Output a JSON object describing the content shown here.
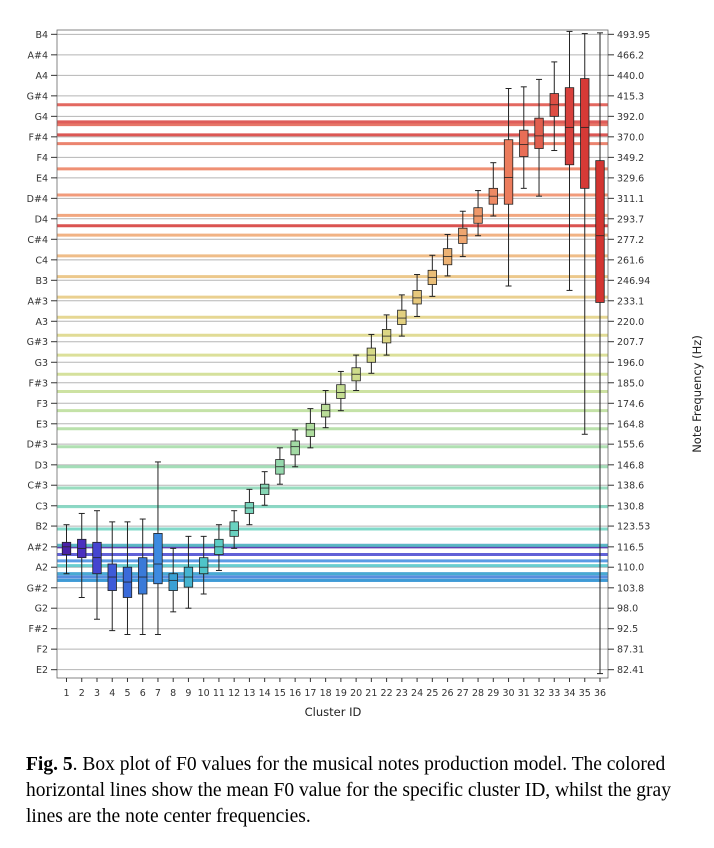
{
  "caption": {
    "label": "Fig. 5",
    "text": ". Box plot of F0 values for the musical notes production model. The colored horizontal lines show the mean F0 value for the specific cluster ID, whilst the gray lines are the note center frequencies."
  },
  "chart_data": {
    "type": "box",
    "xlabel": "Cluster ID",
    "ylabel_right": "Note Frequency (Hz)",
    "y_scale": "log",
    "ylim_hz": [
      80.5,
      500
    ],
    "note_ticks": [
      {
        "note": "E2",
        "freq": "82.41",
        "hz": 82.41
      },
      {
        "note": "F2",
        "freq": "87.31",
        "hz": 87.31
      },
      {
        "note": "F#2",
        "freq": "92.5",
        "hz": 92.5
      },
      {
        "note": "G2",
        "freq": "98.0",
        "hz": 98.0
      },
      {
        "note": "G#2",
        "freq": "103.8",
        "hz": 103.8
      },
      {
        "note": "A2",
        "freq": "110.0",
        "hz": 110.0
      },
      {
        "note": "A#2",
        "freq": "116.5",
        "hz": 116.5
      },
      {
        "note": "B2",
        "freq": "123.53",
        "hz": 123.53
      },
      {
        "note": "C3",
        "freq": "130.8",
        "hz": 130.8
      },
      {
        "note": "C#3",
        "freq": "138.6",
        "hz": 138.6
      },
      {
        "note": "D3",
        "freq": "146.8",
        "hz": 146.8
      },
      {
        "note": "D#3",
        "freq": "155.6",
        "hz": 155.6
      },
      {
        "note": "E3",
        "freq": "164.8",
        "hz": 164.8
      },
      {
        "note": "F3",
        "freq": "174.6",
        "hz": 174.6
      },
      {
        "note": "F#3",
        "freq": "185.0",
        "hz": 185.0
      },
      {
        "note": "G3",
        "freq": "196.0",
        "hz": 196.0
      },
      {
        "note": "G#3",
        "freq": "207.7",
        "hz": 207.7
      },
      {
        "note": "A3",
        "freq": "220.0",
        "hz": 220.0
      },
      {
        "note": "A#3",
        "freq": "233.1",
        "hz": 233.1
      },
      {
        "note": "B3",
        "freq": "246.94",
        "hz": 246.94
      },
      {
        "note": "C4",
        "freq": "261.6",
        "hz": 261.6
      },
      {
        "note": "C#4",
        "freq": "277.2",
        "hz": 277.2
      },
      {
        "note": "D4",
        "freq": "293.7",
        "hz": 293.7
      },
      {
        "note": "D#4",
        "freq": "311.1",
        "hz": 311.1
      },
      {
        "note": "E4",
        "freq": "329.6",
        "hz": 329.6
      },
      {
        "note": "F4",
        "freq": "349.2",
        "hz": 349.2
      },
      {
        "note": "F#4",
        "freq": "370.0",
        "hz": 370.0
      },
      {
        "note": "G4",
        "freq": "392.0",
        "hz": 392.0
      },
      {
        "note": "G#4",
        "freq": "415.3",
        "hz": 415.3
      },
      {
        "note": "A4",
        "freq": "440.0",
        "hz": 440.0
      },
      {
        "note": "A#4",
        "freq": "466.2",
        "hz": 466.2
      },
      {
        "note": "B4",
        "freq": "493.95",
        "hz": 493.95
      }
    ],
    "clusters": [
      {
        "id": "1",
        "whislo": 108,
        "q1": 114,
        "med": 116.5,
        "q3": 118,
        "whishi": 124,
        "mean": 116.5,
        "color": "#4a22a8"
      },
      {
        "id": "2",
        "whislo": 101,
        "q1": 113,
        "med": 116,
        "q3": 119,
        "whishi": 128,
        "mean": 117,
        "color": "#4a2fbf"
      },
      {
        "id": "3",
        "whislo": 95,
        "q1": 108,
        "med": 113,
        "q3": 118,
        "whishi": 129,
        "mean": 114,
        "color": "#4545d0"
      },
      {
        "id": "4",
        "whislo": 92,
        "q1": 103,
        "med": 107,
        "q3": 111,
        "whishi": 125,
        "mean": 108,
        "color": "#3e5ad8"
      },
      {
        "id": "5",
        "whislo": 91,
        "q1": 101,
        "med": 105.5,
        "q3": 110,
        "whishi": 125,
        "mean": 106,
        "color": "#3a6ad9"
      },
      {
        "id": "6",
        "whislo": 91,
        "q1": 102,
        "med": 107,
        "q3": 113,
        "whishi": 126,
        "mean": 107,
        "color": "#3a7ad8"
      },
      {
        "id": "7",
        "whislo": 91,
        "q1": 105,
        "med": 111,
        "q3": 121,
        "whishi": 148,
        "mean": 112,
        "color": "#3d8ae0"
      },
      {
        "id": "8",
        "whislo": 97,
        "q1": 103,
        "med": 106,
        "q3": 108,
        "whishi": 116,
        "mean": 106,
        "color": "#3aa0d4"
      },
      {
        "id": "9",
        "whislo": 98,
        "q1": 104,
        "med": 107,
        "q3": 110,
        "whishi": 120,
        "mean": 108,
        "color": "#45b4d0"
      },
      {
        "id": "10",
        "whislo": 102,
        "q1": 108,
        "med": 110,
        "q3": 113,
        "whishi": 120,
        "mean": 110.5,
        "color": "#4fc4c8"
      },
      {
        "id": "11",
        "whislo": 109,
        "q1": 114,
        "med": 116.5,
        "q3": 119,
        "whishi": 124,
        "mean": 117,
        "color": "#5cccc4"
      },
      {
        "id": "12",
        "whislo": 116,
        "q1": 120,
        "med": 122,
        "q3": 125,
        "whishi": 129,
        "mean": 122.5,
        "color": "#6ad2c0"
      },
      {
        "id": "13",
        "whislo": 124,
        "q1": 128,
        "med": 130,
        "q3": 132,
        "whishi": 137,
        "mean": 130.5,
        "color": "#78d4bc"
      },
      {
        "id": "14",
        "whislo": 131,
        "q1": 135,
        "med": 137.5,
        "q3": 139,
        "whishi": 144,
        "mean": 137.5,
        "color": "#86d6b4"
      },
      {
        "id": "15",
        "whislo": 139,
        "q1": 143,
        "med": 146,
        "q3": 149,
        "whishi": 154,
        "mean": 146,
        "color": "#94d8ac"
      },
      {
        "id": "16",
        "whislo": 146,
        "q1": 151,
        "med": 154.5,
        "q3": 157,
        "whishi": 162,
        "mean": 154.5,
        "color": "#a2daa4"
      },
      {
        "id": "17",
        "whislo": 154,
        "q1": 159,
        "med": 162,
        "q3": 165,
        "whishi": 172,
        "mean": 162.5,
        "color": "#aedc9e"
      },
      {
        "id": "18",
        "whislo": 163,
        "q1": 168,
        "med": 171,
        "q3": 174,
        "whishi": 181,
        "mean": 171,
        "color": "#badd98"
      },
      {
        "id": "19",
        "whislo": 171,
        "q1": 177,
        "med": 180,
        "q3": 184,
        "whishi": 191,
        "mean": 180.5,
        "color": "#c4dd92"
      },
      {
        "id": "20",
        "whislo": 181,
        "q1": 186,
        "med": 189.5,
        "q3": 193,
        "whishi": 200,
        "mean": 189.5,
        "color": "#cedc8c"
      },
      {
        "id": "21",
        "whislo": 190,
        "q1": 196,
        "med": 200,
        "q3": 204,
        "whishi": 212,
        "mean": 200,
        "color": "#d6da88"
      },
      {
        "id": "22",
        "whislo": 200,
        "q1": 207,
        "med": 211,
        "q3": 215,
        "whishi": 224,
        "mean": 211.5,
        "color": "#dcd684"
      },
      {
        "id": "23",
        "whislo": 211,
        "q1": 218,
        "med": 222,
        "q3": 227,
        "whishi": 237,
        "mean": 222.5,
        "color": "#e2d080"
      },
      {
        "id": "24",
        "whislo": 223,
        "q1": 231,
        "med": 235,
        "q3": 240,
        "whishi": 251,
        "mean": 235.5,
        "color": "#e6c87c"
      },
      {
        "id": "25",
        "whislo": 236,
        "q1": 244,
        "med": 249,
        "q3": 254,
        "whishi": 265,
        "mean": 249.5,
        "color": "#e9be78"
      },
      {
        "id": "26",
        "whislo": 250,
        "q1": 258,
        "med": 264,
        "q3": 270,
        "whishi": 281,
        "mean": 264.5,
        "color": "#ecb274"
      },
      {
        "id": "27",
        "whislo": 264,
        "q1": 274,
        "med": 280,
        "q3": 286,
        "whishi": 300,
        "mean": 280.5,
        "color": "#eea670"
      },
      {
        "id": "28",
        "whislo": 280,
        "q1": 290,
        "med": 296,
        "q3": 303,
        "whishi": 318,
        "mean": 296.5,
        "color": "#ee986a"
      },
      {
        "id": "29",
        "whislo": 296,
        "q1": 306,
        "med": 313,
        "q3": 320,
        "whishi": 344,
        "mean": 314,
        "color": "#ee8a64"
      },
      {
        "id": "30",
        "whislo": 243,
        "q1": 306,
        "med": 330,
        "q3": 367,
        "whishi": 424,
        "mean": 338,
        "color": "#ec7c5c"
      },
      {
        "id": "31",
        "whislo": 320,
        "q1": 350,
        "med": 362,
        "q3": 377,
        "whishi": 426,
        "mean": 363,
        "color": "#e86e56"
      },
      {
        "id": "32",
        "whislo": 313,
        "q1": 358,
        "med": 371,
        "q3": 390,
        "whishi": 435,
        "mean": 383,
        "color": "#e25e4e"
      },
      {
        "id": "33",
        "whislo": 356,
        "q1": 392,
        "med": 405,
        "q3": 418,
        "whishi": 457,
        "mean": 405,
        "color": "#de4e44"
      },
      {
        "id": "34",
        "whislo": 240,
        "q1": 342,
        "med": 380,
        "q3": 425,
        "whishi": 498,
        "mean": 386,
        "color": "#d8403c"
      },
      {
        "id": "35",
        "whislo": 160,
        "q1": 320,
        "med": 380,
        "q3": 436,
        "whishi": 495,
        "mean": 372,
        "color": "#d63a36"
      },
      {
        "id": "36",
        "whislo": 81.5,
        "q1": 232,
        "med": 280,
        "q3": 346,
        "whishi": 496,
        "mean": 288,
        "color": "#d33531"
      }
    ]
  }
}
